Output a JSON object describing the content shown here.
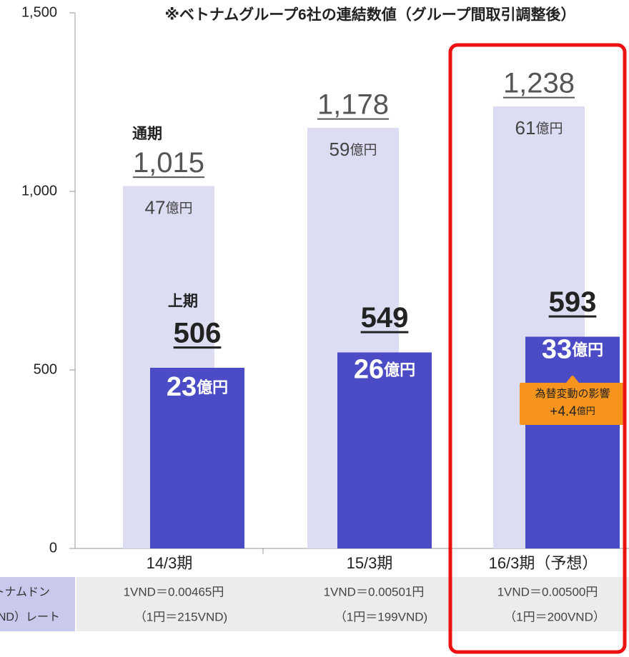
{
  "chart_data": {
    "type": "bar",
    "note": "※ベトナムグループ6社の連結数値（グループ間取引調整後）",
    "categories": [
      "14/3期",
      "15/3期",
      "16/3期（予想）"
    ],
    "unit": "億円",
    "series": [
      {
        "name": "通期",
        "color": "#dcdcf3",
        "values": [
          1015,
          1178,
          1238
        ],
        "value_labels": [
          "1,015",
          "1,178",
          "1,238"
        ],
        "profit": [
          47,
          59,
          61
        ]
      },
      {
        "name": "上期",
        "color": "#4b4bc6",
        "values": [
          506,
          549,
          593
        ],
        "profit": [
          23,
          26,
          33
        ]
      }
    ],
    "ylim": [
      0,
      1500
    ],
    "yticks": [
      0,
      500,
      {
        "value": 1000,
        "label": "1,000"
      },
      {
        "value": 1500,
        "label": "1,500"
      }
    ],
    "callout": {
      "title": "為替変動の影響",
      "value_label": "+4.4"
    },
    "rate_table": {
      "header": [
        "ベトナムドン",
        "（VND）レート"
      ],
      "rows": [
        [
          "1VND＝0.00465円",
          "（1円＝215VND)"
        ],
        [
          "1VND＝0.00501円",
          "（1円＝199VND)"
        ],
        [
          "1VND＝0.00500円",
          "（1円＝200VND）"
        ]
      ]
    }
  }
}
